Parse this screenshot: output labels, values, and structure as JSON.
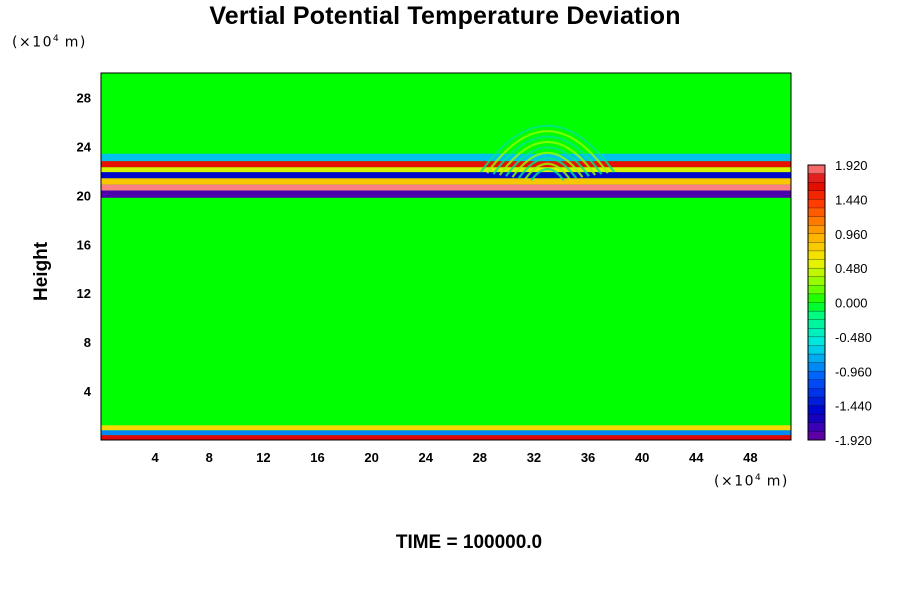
{
  "chart_data": {
    "type": "heatmap",
    "title": "Vertial Potential Temperature Deviation",
    "ylabel": "Height",
    "x_unit": "(×10⁴ m)",
    "y_unit": "(×10⁴ m)",
    "x_unit_base": "(×10",
    "x_unit_exp": "4",
    "x_unit_tail": " m)",
    "xlim": [
      0,
      51
    ],
    "ylim": [
      0,
      30
    ],
    "x_ticks": [
      4,
      8,
      12,
      16,
      20,
      24,
      28,
      32,
      36,
      40,
      44,
      48
    ],
    "y_ticks": [
      4,
      8,
      12,
      16,
      20,
      24,
      28
    ],
    "colorbar": {
      "min": -1.92,
      "max": 1.92,
      "levels": 32,
      "labels": [
        "1.920",
        "1.440",
        "0.960",
        "0.480",
        "0.000",
        "-0.480",
        "-0.960",
        "-1.440",
        "-1.920"
      ],
      "label_values": [
        1.92,
        1.44,
        0.96,
        0.48,
        0.0,
        -0.48,
        -0.96,
        -1.44,
        -1.92
      ]
    },
    "background_value": 0.0,
    "features": [
      {
        "y": [
          19.8,
          20.4
        ],
        "x": [
          0,
          51
        ],
        "value": -1.8
      },
      {
        "y": [
          20.4,
          20.9
        ],
        "x": [
          0,
          51
        ],
        "value": 1.9
      },
      {
        "y": [
          20.9,
          21.4
        ],
        "x": [
          0,
          51
        ],
        "value": 0.8
      },
      {
        "y": [
          21.4,
          21.9
        ],
        "x": [
          0,
          51
        ],
        "value": -1.5
      },
      {
        "y": [
          21.9,
          22.3
        ],
        "x": [
          0,
          51
        ],
        "value": 0.5
      },
      {
        "y": [
          22.3,
          22.8
        ],
        "x": [
          0,
          51
        ],
        "value": 1.6
      },
      {
        "y": [
          22.8,
          23.4
        ],
        "x": [
          0,
          51
        ],
        "value": -0.7
      },
      {
        "y": [
          0.0,
          0.4
        ],
        "x": [
          0,
          51
        ],
        "value": 1.7
      },
      {
        "y": [
          0.4,
          0.8
        ],
        "x": [
          0,
          51
        ],
        "value": -0.9
      },
      {
        "y": [
          0.8,
          1.2
        ],
        "x": [
          0,
          51
        ],
        "value": 0.7
      }
    ],
    "footer": "TIME = 100000.0"
  }
}
